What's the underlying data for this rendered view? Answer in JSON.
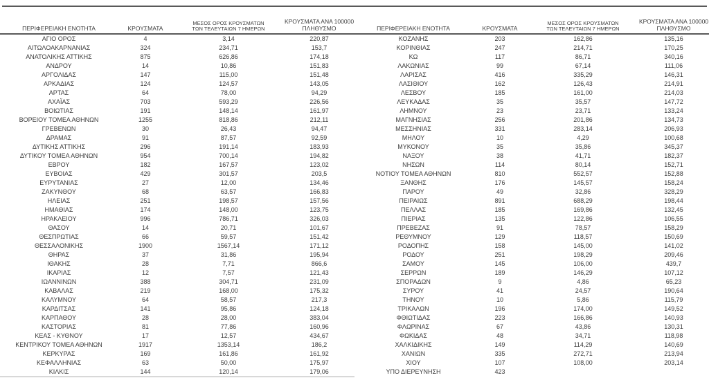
{
  "page": {
    "background": "#ffffff",
    "text_color": "#3d3d3d",
    "rule_color": "#595959"
  },
  "headers": {
    "region": "ΠΕΡΙΦΕΡΕΙΑΚΗ ΕΝΟΤΗΤΑ",
    "cases": "ΚΡΟΥΣΜΑΤΑ",
    "avg7_line1": "ΜΕΣΟΣ ΟΡΟΣ ΚΡΟΥΣΜΑΤΩΝ",
    "avg7_line2": "ΤΩΝ ΤΕΛΕΥΤΑΙΩΝ 7 ΗΜΕΡΩΝ",
    "per100k_line1": "ΚΡΟΥΣΜΑΤΑ ΑΝΑ 100000",
    "per100k_line2": "ΠΛΗΘΥΣΜΟ"
  },
  "left_table": {
    "rows": [
      [
        "ΑΓΙΟ ΟΡΟΣ",
        "4",
        "3,14",
        "220,87"
      ],
      [
        "ΑΙΤΩΛΟΑΚΑΡΝΑΝΙΑΣ",
        "324",
        "234,71",
        "153,7"
      ],
      [
        "ΑΝΑΤΟΛΙΚΗΣ ΑΤΤΙΚΗΣ",
        "875",
        "626,86",
        "174,18"
      ],
      [
        "ΑΝΔΡΟΥ",
        "14",
        "10,86",
        "151,83"
      ],
      [
        "ΑΡΓΟΛΙΔΑΣ",
        "147",
        "115,00",
        "151,48"
      ],
      [
        "ΑΡΚΑΔΙΑΣ",
        "124",
        "124,57",
        "143,05"
      ],
      [
        "ΑΡΤΑΣ",
        "64",
        "78,00",
        "94,29"
      ],
      [
        "ΑΧΑΪΑΣ",
        "703",
        "593,29",
        "226,56"
      ],
      [
        "ΒΟΙΩΤΙΑΣ",
        "191",
        "148,14",
        "161,97"
      ],
      [
        "ΒΟΡΕΙΟΥ ΤΟΜΕΑ ΑΘΗΝΩΝ",
        "1255",
        "818,86",
        "212,11"
      ],
      [
        "ΓΡΕΒΕΝΩΝ",
        "30",
        "26,43",
        "94,47"
      ],
      [
        "ΔΡΑΜΑΣ",
        "91",
        "87,57",
        "92,59"
      ],
      [
        "ΔΥΤΙΚΗΣ ΑΤΤΙΚΗΣ",
        "296",
        "191,14",
        "183,93"
      ],
      [
        "ΔΥΤΙΚΟΥ ΤΟΜΕΑ ΑΘΗΝΩΝ",
        "954",
        "700,14",
        "194,82"
      ],
      [
        "ΕΒΡΟΥ",
        "182",
        "167,57",
        "123,02"
      ],
      [
        "ΕΥΒΟΙΑΣ",
        "429",
        "301,57",
        "203,5"
      ],
      [
        "ΕΥΡΥΤΑΝΙΑΣ",
        "27",
        "12,00",
        "134,46"
      ],
      [
        "ΖΑΚΥΝΘΟΥ",
        "68",
        "63,57",
        "166,83"
      ],
      [
        "ΗΛΕΙΑΣ",
        "251",
        "198,57",
        "157,56"
      ],
      [
        "ΗΜΑΘΙΑΣ",
        "174",
        "148,00",
        "123,75"
      ],
      [
        "ΗΡΑΚΛΕΙΟΥ",
        "996",
        "786,71",
        "326,03"
      ],
      [
        "ΘΑΣΟΥ",
        "14",
        "20,71",
        "101,67"
      ],
      [
        "ΘΕΣΠΡΩΤΙΑΣ",
        "66",
        "59,57",
        "151,42"
      ],
      [
        "ΘΕΣΣΑΛΟΝΙΚΗΣ",
        "1900",
        "1567,14",
        "171,12"
      ],
      [
        "ΘΗΡΑΣ",
        "37",
        "31,86",
        "195,94"
      ],
      [
        "ΙΘΑΚΗΣ",
        "28",
        "7,71",
        "866,6"
      ],
      [
        "ΙΚΑΡΙΑΣ",
        "12",
        "7,57",
        "121,43"
      ],
      [
        "ΙΩΑΝΝΙΝΩΝ",
        "388",
        "304,71",
        "231,09"
      ],
      [
        "ΚΑΒΑΛΑΣ",
        "219",
        "168,00",
        "175,32"
      ],
      [
        "ΚΑΛΥΜΝΟΥ",
        "64",
        "58,57",
        "217,3"
      ],
      [
        "ΚΑΡΔΙΤΣΑΣ",
        "141",
        "95,86",
        "124,18"
      ],
      [
        "ΚΑΡΠΑΘΟΥ",
        "28",
        "28,00",
        "383,04"
      ],
      [
        "ΚΑΣΤΟΡΙΑΣ",
        "81",
        "77,86",
        "160,96"
      ],
      [
        "ΚΕΑΣ - ΚΥΘΝΟΥ",
        "17",
        "12,57",
        "434,67"
      ],
      [
        "ΚΕΝΤΡΙΚΟΥ ΤΟΜΕΑ ΑΘΗΝΩΝ",
        "1917",
        "1353,14",
        "186,2"
      ],
      [
        "ΚΕΡΚΥΡΑΣ",
        "169",
        "161,86",
        "161,92"
      ],
      [
        "ΚΕΦΑΛΛΗΝΙΑΣ",
        "63",
        "50,00",
        "175,97"
      ],
      [
        "ΚΙΛΚΙΣ",
        "144",
        "120,14",
        "179,06"
      ]
    ]
  },
  "right_table": {
    "rows": [
      [
        "ΚΟΖΑΝΗΣ",
        "203",
        "162,86",
        "135,16"
      ],
      [
        "ΚΟΡΙΝΘΙΑΣ",
        "247",
        "214,71",
        "170,25"
      ],
      [
        "ΚΩ",
        "117",
        "86,71",
        "340,16"
      ],
      [
        "ΛΑΚΩΝΙΑΣ",
        "99",
        "67,14",
        "111,06"
      ],
      [
        "ΛΑΡΙΣΑΣ",
        "416",
        "335,29",
        "146,31"
      ],
      [
        "ΛΑΣΙΘΙΟΥ",
        "162",
        "126,43",
        "214,91"
      ],
      [
        "ΛΕΣΒΟΥ",
        "185",
        "161,00",
        "214,03"
      ],
      [
        "ΛΕΥΚΑΔΑΣ",
        "35",
        "35,57",
        "147,72"
      ],
      [
        "ΛΗΜΝΟΥ",
        "23",
        "23,71",
        "133,24"
      ],
      [
        "ΜΑΓΝΗΣΙΑΣ",
        "256",
        "201,86",
        "134,73"
      ],
      [
        "ΜΕΣΣΗΝΙΑΣ",
        "331",
        "283,14",
        "206,93"
      ],
      [
        "ΜΗΛΟΥ",
        "10",
        "4,29",
        "100,68"
      ],
      [
        "ΜΥΚΟΝΟΥ",
        "35",
        "35,86",
        "345,37"
      ],
      [
        "ΝΑΞΟΥ",
        "38",
        "41,71",
        "182,37"
      ],
      [
        "ΝΗΣΩΝ",
        "114",
        "80,14",
        "152,71"
      ],
      [
        "ΝΟΤΙΟΥ ΤΟΜΕΑ ΑΘΗΝΩΝ",
        "810",
        "552,57",
        "152,88"
      ],
      [
        "ΞΑΝΘΗΣ",
        "176",
        "145,57",
        "158,24"
      ],
      [
        "ΠΑΡΟΥ",
        "49",
        "32,86",
        "328,29"
      ],
      [
        "ΠΕΙΡΑΙΩΣ",
        "891",
        "688,29",
        "198,44"
      ],
      [
        "ΠΕΛΛΑΣ",
        "185",
        "169,86",
        "132,45"
      ],
      [
        "ΠΙΕΡΙΑΣ",
        "135",
        "122,86",
        "106,55"
      ],
      [
        "ΠΡΕΒΕΖΑΣ",
        "91",
        "78,57",
        "158,29"
      ],
      [
        "ΡΕΘΥΜΝΟΥ",
        "129",
        "118,57",
        "150,69"
      ],
      [
        "ΡΟΔΟΠΗΣ",
        "158",
        "145,00",
        "141,02"
      ],
      [
        "ΡΟΔΟΥ",
        "251",
        "198,29",
        "209,46"
      ],
      [
        "ΣΑΜΟΥ",
        "145",
        "106,00",
        "439,7"
      ],
      [
        "ΣΕΡΡΩΝ",
        "189",
        "146,29",
        "107,12"
      ],
      [
        "ΣΠΟΡΑΔΩΝ",
        "9",
        "4,86",
        "65,23"
      ],
      [
        "ΣΥΡΟΥ",
        "41",
        "24,57",
        "190,64"
      ],
      [
        "ΤΗΝΟΥ",
        "10",
        "5,86",
        "115,79"
      ],
      [
        "ΤΡΙΚΑΛΩΝ",
        "196",
        "174,00",
        "149,52"
      ],
      [
        "ΦΘΙΩΤΙΔΑΣ",
        "223",
        "166,86",
        "140,93"
      ],
      [
        "ΦΛΩΡΙΝΑΣ",
        "67",
        "43,86",
        "130,31"
      ],
      [
        "ΦΩΚΙΔΑΣ",
        "48",
        "34,71",
        "118,98"
      ],
      [
        "ΧΑΛΚΙΔΙΚΗΣ",
        "149",
        "114,29",
        "140,69"
      ],
      [
        "ΧΑΝΙΩΝ",
        "335",
        "272,71",
        "213,94"
      ],
      [
        "ΧΙΟΥ",
        "107",
        "108,00",
        "203,14"
      ],
      [
        "ΥΠΟ ΔΙΕΡΕΥΝΗΣΗ",
        "423",
        "",
        ""
      ]
    ]
  }
}
